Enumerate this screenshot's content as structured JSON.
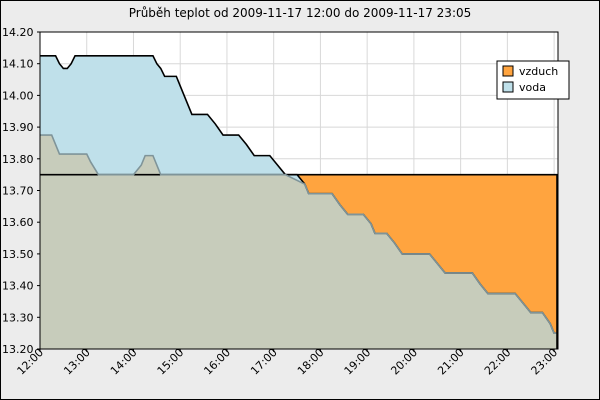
{
  "chart_data": {
    "type": "area",
    "title": "Průběh teplot od 2009-11-17 12:00 do 2009-11-17 23:05",
    "xlabel": "",
    "ylabel": "",
    "x_ticks": [
      "12:00",
      "13:00",
      "14:00",
      "15:00",
      "16:00",
      "17:00",
      "18:00",
      "19:00",
      "20:00",
      "21:00",
      "22:00",
      "23:00"
    ],
    "y_ticks": [
      "13.20",
      "13.30",
      "13.40",
      "13.50",
      "13.60",
      "13.70",
      "13.80",
      "13.90",
      "14.00",
      "14.10",
      "14.20"
    ],
    "xlim": [
      "12:00",
      "23:05"
    ],
    "ylim": [
      13.2,
      14.2
    ],
    "grid": true,
    "legend_position": "top-right",
    "series": [
      {
        "name": "vzduch",
        "color": "#ffa43f",
        "points": [
          [
            "12:00",
            13.75
          ],
          [
            "23:05",
            13.75
          ]
        ]
      },
      {
        "name": "voda",
        "color": "#bfe0ea",
        "points": [
          [
            "12:00",
            14.125
          ],
          [
            "12:20",
            14.125
          ],
          [
            "12:25",
            14.1
          ],
          [
            "12:30",
            14.085
          ],
          [
            "12:35",
            14.085
          ],
          [
            "12:40",
            14.1
          ],
          [
            "12:45",
            14.125
          ],
          [
            "13:30",
            14.125
          ],
          [
            "14:25",
            14.125
          ],
          [
            "14:30",
            14.1
          ],
          [
            "14:35",
            14.085
          ],
          [
            "14:40",
            14.06
          ],
          [
            "14:55",
            14.06
          ],
          [
            "15:00",
            14.03
          ],
          [
            "15:05",
            14.0
          ],
          [
            "15:10",
            13.97
          ],
          [
            "15:15",
            13.94
          ],
          [
            "15:35",
            13.94
          ],
          [
            "15:45",
            13.91
          ],
          [
            "15:55",
            13.875
          ],
          [
            "16:15",
            13.875
          ],
          [
            "16:25",
            13.845
          ],
          [
            "16:35",
            13.81
          ],
          [
            "16:55",
            13.81
          ],
          [
            "17:05",
            13.78
          ],
          [
            "17:15",
            13.75
          ],
          [
            "17:30",
            13.75
          ],
          [
            "17:40",
            13.72
          ],
          [
            "17:45",
            13.69
          ],
          [
            "18:15",
            13.69
          ],
          [
            "18:25",
            13.655
          ],
          [
            "18:35",
            13.625
          ],
          [
            "18:55",
            13.625
          ],
          [
            "19:05",
            13.595
          ],
          [
            "19:10",
            13.565
          ],
          [
            "19:25",
            13.565
          ],
          [
            "19:35",
            13.535
          ],
          [
            "19:45",
            13.5
          ],
          [
            "20:20",
            13.5
          ],
          [
            "20:30",
            13.47
          ],
          [
            "20:40",
            13.44
          ],
          [
            "21:15",
            13.44
          ],
          [
            "21:25",
            13.405
          ],
          [
            "21:35",
            13.375
          ],
          [
            "22:10",
            13.375
          ],
          [
            "22:15",
            13.36
          ],
          [
            "22:20",
            13.345
          ],
          [
            "22:25",
            13.33
          ],
          [
            "22:30",
            13.315
          ],
          [
            "22:45",
            13.315
          ],
          [
            "22:55",
            13.28
          ],
          [
            "23:00",
            13.25
          ],
          [
            "23:05",
            13.25
          ]
        ]
      },
      {
        "name": "",
        "color": "#c7ccbb",
        "points": [
          [
            "12:00",
            13.875
          ],
          [
            "12:15",
            13.875
          ],
          [
            "12:20",
            13.845
          ],
          [
            "12:25",
            13.815
          ],
          [
            "13:00",
            13.815
          ],
          [
            "13:05",
            13.79
          ],
          [
            "13:15",
            13.75
          ],
          [
            "14:00",
            13.75
          ],
          [
            "14:10",
            13.78
          ],
          [
            "14:15",
            13.81
          ],
          [
            "14:25",
            13.81
          ],
          [
            "14:35",
            13.75
          ],
          [
            "17:15",
            13.75
          ],
          [
            "17:40",
            13.72
          ],
          [
            "17:45",
            13.69
          ],
          [
            "18:15",
            13.69
          ],
          [
            "18:25",
            13.655
          ],
          [
            "18:35",
            13.625
          ],
          [
            "18:55",
            13.625
          ],
          [
            "19:05",
            13.595
          ],
          [
            "19:10",
            13.565
          ],
          [
            "19:25",
            13.565
          ],
          [
            "19:35",
            13.535
          ],
          [
            "19:45",
            13.5
          ],
          [
            "20:20",
            13.5
          ],
          [
            "20:30",
            13.47
          ],
          [
            "20:40",
            13.44
          ],
          [
            "21:15",
            13.44
          ],
          [
            "21:25",
            13.405
          ],
          [
            "21:35",
            13.375
          ],
          [
            "22:10",
            13.375
          ],
          [
            "22:15",
            13.36
          ],
          [
            "22:20",
            13.345
          ],
          [
            "22:25",
            13.33
          ],
          [
            "22:30",
            13.315
          ],
          [
            "22:45",
            13.315
          ],
          [
            "22:55",
            13.28
          ],
          [
            "23:00",
            13.25
          ],
          [
            "23:05",
            13.25
          ]
        ]
      }
    ]
  }
}
